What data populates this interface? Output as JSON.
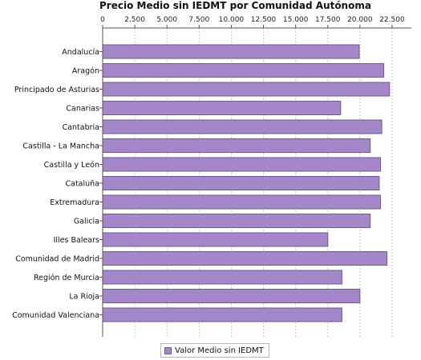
{
  "chart_data": {
    "type": "bar",
    "orientation": "horizontal",
    "title": "Precio Medio sin IEDMT por Comunidad Autónoma",
    "xlabel": "",
    "ylabel": "",
    "xlim": [
      0,
      24000
    ],
    "x_ticks": [
      0,
      2500,
      5000,
      7500,
      10000,
      12500,
      15000,
      17500,
      20000,
      22500
    ],
    "x_tick_labels": [
      "0",
      "2.500",
      "5.000",
      "7.500",
      "10.000",
      "12.500",
      "15.000",
      "17.500",
      "20.000",
      "22.500"
    ],
    "x_axis_position": "top",
    "grid": "vertical dashed",
    "legend_position": "bottom-center",
    "categories": [
      "Andalucía",
      "Aragón",
      "Principado de Asturias",
      "Canarias",
      "Cantabria",
      "Castilla - La Mancha",
      "Castilla y León",
      "Cataluña",
      "Extremadura",
      "Galicia",
      "Illes Balears",
      "Comunidad de Madrid",
      "Región de Murcia",
      "La Rioja",
      "Comunidad Valenciana"
    ],
    "series": [
      {
        "name": "Valor Medio sin IEDMT",
        "color": "#a387c9",
        "border_color": "#6e5a94",
        "values": [
          19950,
          21850,
          22300,
          18500,
          21700,
          20800,
          21600,
          21500,
          21600,
          20800,
          17500,
          22100,
          18600,
          20000,
          18600
        ]
      }
    ]
  }
}
